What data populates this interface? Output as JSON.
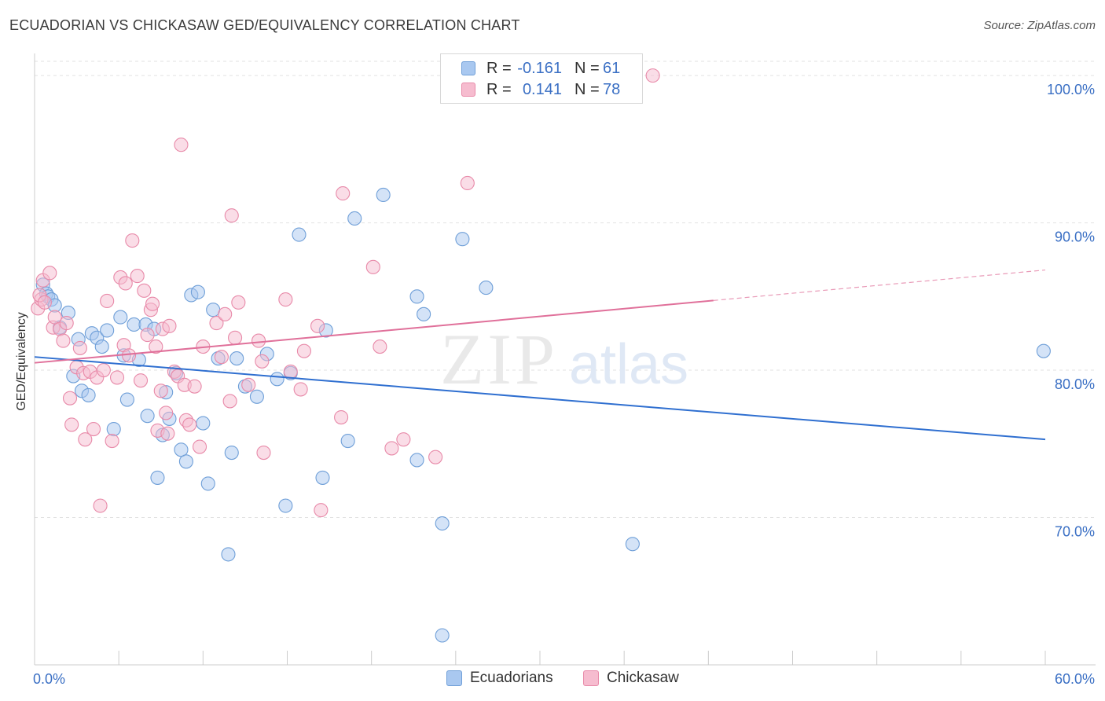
{
  "header": {
    "title": "ECUADORIAN VS CHICKASAW GED/EQUIVALENCY CORRELATION CHART",
    "source": "Source: ZipAtlas.com"
  },
  "legend": {
    "rows": [
      {
        "r_label": "R =",
        "r_value": "-0.161",
        "n_label": "N =",
        "n_value": "61"
      },
      {
        "r_label": "R =",
        "r_value": "0.141",
        "n_label": "N =",
        "n_value": "78"
      }
    ]
  },
  "watermark": {
    "zip": "ZIP",
    "atlas": "atlas"
  },
  "colors": {
    "ecuadorian_fill": "#a9c8f0",
    "ecuadorian_stroke": "#6f9fd8",
    "ecuadorian_line": "#2f6fd0",
    "chickasaw_fill": "#f6bccf",
    "chickasaw_stroke": "#e88aa9",
    "chickasaw_line": "#e0709a",
    "tick_label": "#3a6fc4",
    "grid": "#e2e2e2"
  },
  "chart_data": {
    "type": "scatter",
    "title": "ECUADORIAN VS CHICKASAW GED/EQUIVALENCY CORRELATION CHART",
    "xlabel": "",
    "ylabel": "GED/Equivalency",
    "xlim": [
      0,
      60
    ],
    "ylim": [
      60.0,
      101.5
    ],
    "x_tick_labels": [
      "0.0%",
      "60.0%"
    ],
    "y_ticks": [
      70,
      80,
      90,
      100
    ],
    "y_tick_labels": [
      "70.0%",
      "80.0%",
      "90.0%",
      "100.0%"
    ],
    "grid": true,
    "legend_position": "bottom-center",
    "series": [
      {
        "name": "Ecuadorians",
        "r": -0.161,
        "n": 61,
        "trend": {
          "x": [
            0,
            60
          ],
          "y": [
            80.9,
            75.3
          ],
          "dashed_from": null
        },
        "points": [
          [
            0.5,
            85.8
          ],
          [
            0.7,
            85.2
          ],
          [
            0.8,
            85.0
          ],
          [
            1.0,
            84.8
          ],
          [
            1.2,
            84.4
          ],
          [
            1.5,
            82.9
          ],
          [
            2.0,
            83.9
          ],
          [
            2.3,
            79.6
          ],
          [
            2.6,
            82.1
          ],
          [
            2.8,
            78.6
          ],
          [
            3.2,
            78.3
          ],
          [
            3.4,
            82.5
          ],
          [
            3.7,
            82.2
          ],
          [
            4.0,
            81.6
          ],
          [
            4.3,
            82.7
          ],
          [
            4.7,
            76.0
          ],
          [
            5.1,
            83.6
          ],
          [
            5.3,
            81.0
          ],
          [
            5.5,
            78.0
          ],
          [
            5.9,
            83.1
          ],
          [
            6.2,
            80.7
          ],
          [
            6.6,
            83.1
          ],
          [
            6.7,
            76.9
          ],
          [
            7.1,
            82.8
          ],
          [
            7.3,
            72.7
          ],
          [
            7.6,
            75.6
          ],
          [
            7.8,
            78.5
          ],
          [
            8.0,
            76.7
          ],
          [
            8.4,
            79.8
          ],
          [
            8.7,
            74.6
          ],
          [
            9.0,
            73.8
          ],
          [
            9.3,
            85.1
          ],
          [
            9.7,
            85.3
          ],
          [
            10.0,
            76.4
          ],
          [
            10.3,
            72.3
          ],
          [
            10.6,
            84.1
          ],
          [
            10.9,
            80.8
          ],
          [
            11.5,
            67.5
          ],
          [
            11.7,
            74.4
          ],
          [
            12.0,
            80.8
          ],
          [
            12.5,
            78.9
          ],
          [
            13.2,
            78.2
          ],
          [
            13.8,
            81.1
          ],
          [
            14.4,
            79.4
          ],
          [
            14.9,
            70.8
          ],
          [
            15.2,
            79.8
          ],
          [
            15.7,
            89.2
          ],
          [
            17.1,
            72.7
          ],
          [
            17.3,
            82.7
          ],
          [
            18.6,
            75.2
          ],
          [
            19.0,
            90.3
          ],
          [
            20.7,
            91.9
          ],
          [
            22.7,
            85.0
          ],
          [
            22.7,
            73.9
          ],
          [
            23.1,
            83.8
          ],
          [
            24.2,
            62.0
          ],
          [
            24.2,
            69.6
          ],
          [
            25.4,
            88.9
          ],
          [
            26.8,
            85.6
          ],
          [
            35.5,
            68.2
          ],
          [
            59.9,
            81.3
          ]
        ]
      },
      {
        "name": "Chickasaw",
        "r": 0.141,
        "n": 78,
        "trend": {
          "x": [
            0,
            60
          ],
          "y": [
            80.5,
            86.8
          ],
          "dashed_from": 40.3
        },
        "points": [
          [
            0.2,
            84.2
          ],
          [
            0.4,
            84.8
          ],
          [
            0.5,
            86.1
          ],
          [
            0.9,
            86.6
          ],
          [
            1.1,
            82.9
          ],
          [
            1.2,
            83.6
          ],
          [
            1.5,
            82.8
          ],
          [
            1.7,
            82.0
          ],
          [
            1.9,
            83.2
          ],
          [
            2.1,
            78.1
          ],
          [
            2.2,
            76.3
          ],
          [
            2.5,
            80.2
          ],
          [
            2.7,
            81.5
          ],
          [
            2.9,
            79.8
          ],
          [
            3.0,
            75.3
          ],
          [
            3.3,
            79.9
          ],
          [
            3.5,
            76.0
          ],
          [
            3.7,
            79.5
          ],
          [
            3.9,
            70.8
          ],
          [
            4.1,
            80.0
          ],
          [
            4.3,
            84.7
          ],
          [
            4.6,
            75.2
          ],
          [
            4.9,
            79.5
          ],
          [
            5.1,
            86.3
          ],
          [
            5.3,
            81.7
          ],
          [
            5.4,
            85.9
          ],
          [
            5.6,
            81.0
          ],
          [
            5.8,
            88.8
          ],
          [
            6.1,
            86.4
          ],
          [
            6.3,
            79.3
          ],
          [
            6.5,
            85.4
          ],
          [
            6.7,
            82.4
          ],
          [
            6.9,
            84.1
          ],
          [
            7.0,
            84.5
          ],
          [
            7.2,
            81.6
          ],
          [
            7.3,
            75.9
          ],
          [
            7.5,
            78.6
          ],
          [
            7.6,
            82.8
          ],
          [
            7.8,
            77.1
          ],
          [
            7.9,
            75.7
          ],
          [
            8.0,
            83.0
          ],
          [
            8.3,
            79.9
          ],
          [
            8.5,
            79.6
          ],
          [
            8.7,
            95.3
          ],
          [
            8.9,
            79.0
          ],
          [
            9.0,
            76.6
          ],
          [
            9.2,
            76.3
          ],
          [
            9.5,
            78.9
          ],
          [
            9.8,
            74.8
          ],
          [
            10.0,
            81.6
          ],
          [
            10.8,
            83.2
          ],
          [
            11.1,
            80.9
          ],
          [
            11.3,
            83.8
          ],
          [
            11.6,
            77.9
          ],
          [
            11.7,
            90.5
          ],
          [
            11.9,
            82.2
          ],
          [
            12.1,
            84.6
          ],
          [
            12.7,
            79.0
          ],
          [
            13.3,
            82.0
          ],
          [
            13.5,
            80.6
          ],
          [
            13.6,
            74.4
          ],
          [
            14.9,
            84.8
          ],
          [
            15.2,
            79.9
          ],
          [
            15.8,
            78.7
          ],
          [
            16.0,
            81.3
          ],
          [
            16.8,
            83.0
          ],
          [
            17.0,
            70.5
          ],
          [
            18.2,
            76.8
          ],
          [
            18.3,
            92.0
          ],
          [
            20.1,
            87.0
          ],
          [
            20.5,
            81.6
          ],
          [
            21.2,
            74.7
          ],
          [
            21.9,
            75.3
          ],
          [
            23.8,
            74.1
          ],
          [
            25.7,
            92.7
          ],
          [
            36.7,
            100.0
          ],
          [
            0.3,
            85.1
          ],
          [
            0.6,
            84.6
          ]
        ]
      }
    ]
  }
}
